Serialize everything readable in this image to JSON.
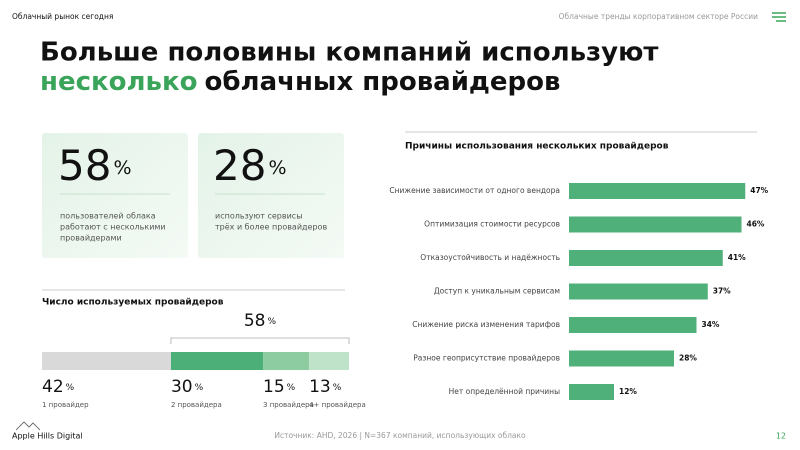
{
  "header": {
    "section": "Облачный рынок сегодня",
    "topic": "Облачные тренды корпоративном секторе России"
  },
  "title": {
    "line1": "Больше половины компаний используют",
    "highlight": "несколько",
    "rest": "облачных провайдеров"
  },
  "cards": [
    {
      "value": 58,
      "unit": "%",
      "lines": [
        "пользователей облака",
        "работают с несколькими",
        "провайдерами"
      ]
    },
    {
      "value": 28,
      "unit": "%",
      "lines": [
        "используют сервисы",
        "трёх и более провайдеров"
      ]
    }
  ],
  "chart_data": [
    {
      "type": "stacked-bar",
      "title": "Число используемых провайдеров",
      "unit": "%",
      "categories": [
        null
      ],
      "series": [
        {
          "name": "1 провайдер",
          "color": "#d9d9d9",
          "values": [
            42
          ]
        },
        {
          "name": "2 провайдера",
          "color": "#4caf78",
          "values": [
            30
          ]
        },
        {
          "name": "3 провайдера",
          "color": "#8ccca0",
          "values": [
            15
          ]
        },
        {
          "name": "4+ провайдера",
          "color": "#bfe3c9",
          "values": [
            13
          ]
        }
      ],
      "bracket_label": 58
    },
    {
      "type": "hbar",
      "title": "Причины использования нескольких провайдеров",
      "color": "#4fb07a",
      "categories": [
        "Снижение зависимости от одного вендора",
        "Оптимизация стоимости ресурсов",
        "Отказоустойчивость и надёжность",
        "Доступ к уникальным сервисам",
        "Снижение риска изменения тарифов",
        "Разное геоприсутствие провайдеров",
        "Нет определённой причины"
      ],
      "values": [
        47,
        46,
        41,
        37,
        34,
        28,
        12
      ],
      "value_labels": [
        "47%",
        "46%",
        "41%",
        "37%",
        "34%",
        "28%",
        "12%"
      ]
    }
  ],
  "footer": {
    "brand": "Apple Hills Digital",
    "source": "Источник: AHD, 2026 | N=367 компаний, использующих облако",
    "page": "12"
  }
}
